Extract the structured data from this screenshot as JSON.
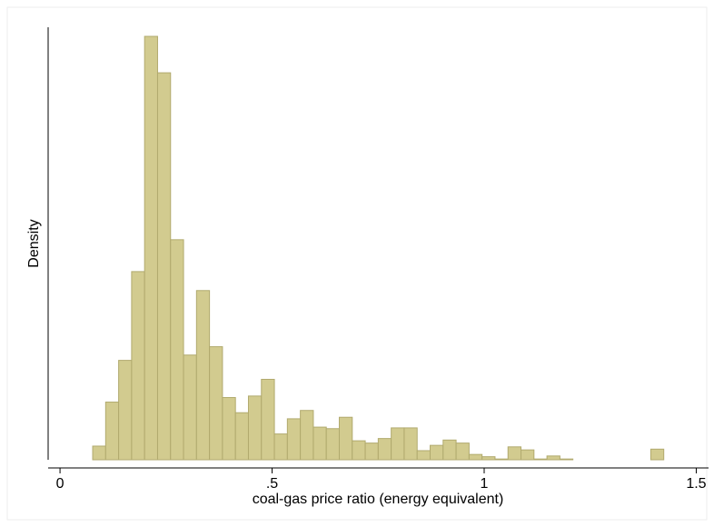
{
  "chart_data": {
    "type": "histogram",
    "x_label": "coal-gas price ratio (energy equivalent)",
    "y_label": "Density",
    "bins": [
      0.077,
      0.1076,
      0.1382,
      0.1688,
      0.1994,
      0.23,
      0.2606,
      0.2912,
      0.3218,
      0.3524,
      0.383,
      0.4136,
      0.4442,
      0.4748,
      0.5054,
      0.536,
      0.5666,
      0.5972,
      0.6278,
      0.6584,
      0.689,
      0.7196,
      0.7502,
      0.7808,
      0.8114,
      0.842,
      0.8726,
      0.9032,
      0.9338,
      0.9644,
      0.995,
      1.0256,
      1.0562,
      1.0868,
      1.1174,
      1.148,
      1.1786,
      1.2092,
      1.2398,
      1.2704,
      1.301,
      1.3316,
      1.3622,
      1.3928,
      1.4234
    ],
    "values": [
      0.18,
      0.76,
      1.31,
      2.48,
      5.58,
      5.1,
      2.9,
      1.38,
      2.23,
      1.49,
      0.82,
      0.62,
      0.84,
      1.06,
      0.34,
      0.54,
      0.65,
      0.43,
      0.41,
      0.56,
      0.25,
      0.22,
      0.28,
      0.42,
      0.42,
      0.12,
      0.19,
      0.26,
      0.22,
      0.07,
      0.04,
      0.01,
      0.17,
      0.13,
      0.01,
      0.05,
      0.01,
      0,
      0,
      0,
      0,
      0,
      0,
      0.14
    ],
    "color": "#d2cb8f",
    "edge_color": "#b1aa6e",
    "xlim": [
      -0.028,
      1.529
    ],
    "ylim": [
      0,
      5.7
    ],
    "xticks": [
      0,
      {
        "value": 0.5,
        "label": ".5"
      },
      1,
      1.5
    ]
  }
}
